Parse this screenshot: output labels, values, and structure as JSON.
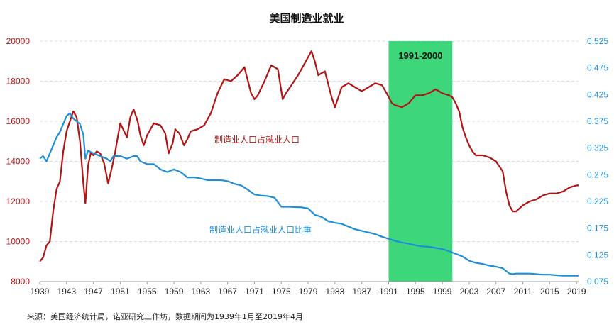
{
  "chart_data": {
    "type": "line",
    "title": "美国制造业就业",
    "footer": "来源：美国经济统计局，诺亚研究工作坊，数据期间为1939年1月至2019年4月",
    "x_range": [
      1939.0,
      2019.3
    ],
    "x_ticks": [
      1939,
      1943,
      1947,
      1951,
      1955,
      1959,
      1963,
      1967,
      1971,
      1975,
      1979,
      1983,
      1987,
      1991,
      1995,
      1999,
      2003,
      2007,
      2011,
      2015,
      2019
    ],
    "y_left": {
      "range": [
        8000,
        20000
      ],
      "ticks": [
        8000,
        10000,
        12000,
        14000,
        16000,
        18000,
        20000
      ]
    },
    "y_right": {
      "range": [
        0.075,
        0.525
      ],
      "ticks": [
        "0.075",
        "0.125",
        "0.175",
        "0.225",
        "0.275",
        "0.325",
        "0.375",
        "0.425",
        "0.475",
        "0.525"
      ]
    },
    "highlight": {
      "label": "1991-2000",
      "start": 1991.0,
      "end": 2000.5,
      "color": "#3dd67a"
    },
    "series": [
      {
        "name": "制造业人口占就业人口",
        "axis": "left",
        "color": "#b01515",
        "x": [
          1939.0,
          1939.5,
          1940.0,
          1940.5,
          1941.0,
          1941.5,
          1942.0,
          1942.5,
          1943.0,
          1943.5,
          1944.0,
          1944.5,
          1945.0,
          1945.5,
          1945.8,
          1946.2,
          1946.6,
          1947.0,
          1947.5,
          1948.0,
          1948.6,
          1949.2,
          1949.7,
          1950.2,
          1951.0,
          1952.0,
          1952.5,
          1953.0,
          1953.6,
          1954.0,
          1954.5,
          1955.0,
          1956.0,
          1957.0,
          1957.7,
          1958.2,
          1958.8,
          1959.2,
          1959.8,
          1960.5,
          1961.0,
          1961.5,
          1962.5,
          1963.5,
          1964.5,
          1965.5,
          1966.5,
          1967.5,
          1968.5,
          1969.5,
          1970.5,
          1971.0,
          1971.5,
          1972.5,
          1973.5,
          1974.5,
          1975.2,
          1975.7,
          1976.5,
          1977.5,
          1978.5,
          1979.5,
          1980.0,
          1980.5,
          1981.5,
          1982.5,
          1983.0,
          1984.0,
          1985.0,
          1986.0,
          1987.0,
          1988.0,
          1989.0,
          1990.0,
          1990.7,
          1991.5,
          1992.0,
          1993.0,
          1994.0,
          1995.0,
          1996.0,
          1997.0,
          1998.0,
          1998.5,
          1999.0,
          2000.0,
          2000.5,
          2001.0,
          2001.5,
          2002.0,
          2002.5,
          2003.0,
          2003.5,
          2004.0,
          2005.0,
          2006.0,
          2007.0,
          2008.0,
          2008.5,
          2009.0,
          2009.5,
          2010.0,
          2011.0,
          2012.0,
          2013.0,
          2014.0,
          2015.0,
          2016.0,
          2017.0,
          2018.0,
          2019.0,
          2019.3
        ],
        "values": [
          9000,
          9200,
          9800,
          10000,
          11500,
          12600,
          13000,
          14500,
          15500,
          16000,
          16500,
          16200,
          15000,
          12900,
          11900,
          13800,
          14400,
          14300,
          14500,
          14400,
          13900,
          12900,
          13600,
          14400,
          15900,
          15200,
          16200,
          16600,
          16000,
          15300,
          14800,
          15300,
          15900,
          15800,
          15400,
          14400,
          14900,
          15600,
          15400,
          14800,
          15100,
          15500,
          15600,
          15800,
          16400,
          17400,
          18100,
          18000,
          18300,
          18700,
          17400,
          17100,
          17300,
          18000,
          18800,
          18600,
          17100,
          17400,
          17800,
          18300,
          18900,
          19500,
          19000,
          18300,
          18500,
          17200,
          16700,
          17700,
          17900,
          17700,
          17500,
          17700,
          17900,
          17800,
          17400,
          16900,
          16800,
          16700,
          16900,
          17300,
          17300,
          17400,
          17600,
          17500,
          17400,
          17300,
          17200,
          16900,
          16500,
          15700,
          15200,
          14800,
          14500,
          14300,
          14300,
          14200,
          14000,
          13500,
          12500,
          11800,
          11500,
          11500,
          11800,
          12000,
          12100,
          12300,
          12400,
          12400,
          12500,
          12700,
          12800,
          12800
        ]
      },
      {
        "name": "制造业人口占就业人口比重",
        "axis": "right",
        "color": "#1e8fd6",
        "x": [
          1939.0,
          1939.5,
          1940.0,
          1940.5,
          1941.0,
          1941.5,
          1942.0,
          1942.5,
          1943.0,
          1943.5,
          1944.0,
          1944.5,
          1945.0,
          1945.5,
          1945.8,
          1946.2,
          1947.0,
          1948.0,
          1949.0,
          1949.5,
          1950.0,
          1951.0,
          1952.0,
          1953.0,
          1953.5,
          1954.0,
          1955.0,
          1956.0,
          1957.0,
          1958.0,
          1959.0,
          1960.0,
          1961.0,
          1962.0,
          1963.0,
          1964.0,
          1965.0,
          1966.0,
          1967.0,
          1968.0,
          1969.0,
          1970.0,
          1971.0,
          1972.0,
          1973.0,
          1974.0,
          1975.0,
          1976.0,
          1978.0,
          1979.0,
          1980.0,
          1981.0,
          1982.0,
          1983.0,
          1984.0,
          1985.0,
          1986.0,
          1987.0,
          1988.0,
          1989.0,
          1990.0,
          1991.0,
          1992.0,
          1993.0,
          1994.0,
          1995.0,
          1996.0,
          1997.0,
          1998.0,
          1999.0,
          2000.0,
          2001.0,
          2002.0,
          2003.0,
          2004.0,
          2005.0,
          2006.0,
          2007.0,
          2008.0,
          2009.0,
          2009.5,
          2010.0,
          2011.0,
          2012.0,
          2013.0,
          2014.0,
          2015.0,
          2016.0,
          2017.0,
          2018.0,
          2019.0,
          2019.3
        ],
        "values": [
          0.305,
          0.31,
          0.3,
          0.315,
          0.33,
          0.345,
          0.355,
          0.37,
          0.385,
          0.39,
          0.38,
          0.375,
          0.37,
          0.35,
          0.305,
          0.32,
          0.315,
          0.31,
          0.305,
          0.3,
          0.31,
          0.31,
          0.305,
          0.31,
          0.31,
          0.3,
          0.295,
          0.295,
          0.285,
          0.28,
          0.285,
          0.28,
          0.27,
          0.27,
          0.268,
          0.265,
          0.265,
          0.265,
          0.263,
          0.258,
          0.255,
          0.247,
          0.238,
          0.236,
          0.235,
          0.232,
          0.215,
          0.215,
          0.214,
          0.212,
          0.2,
          0.196,
          0.188,
          0.185,
          0.183,
          0.178,
          0.173,
          0.17,
          0.167,
          0.164,
          0.159,
          0.155,
          0.151,
          0.148,
          0.146,
          0.143,
          0.141,
          0.14,
          0.138,
          0.136,
          0.132,
          0.127,
          0.122,
          0.114,
          0.11,
          0.108,
          0.105,
          0.103,
          0.1,
          0.09,
          0.089,
          0.09,
          0.09,
          0.09,
          0.089,
          0.088,
          0.088,
          0.087,
          0.086,
          0.086,
          0.086,
          0.086
        ]
      }
    ]
  }
}
